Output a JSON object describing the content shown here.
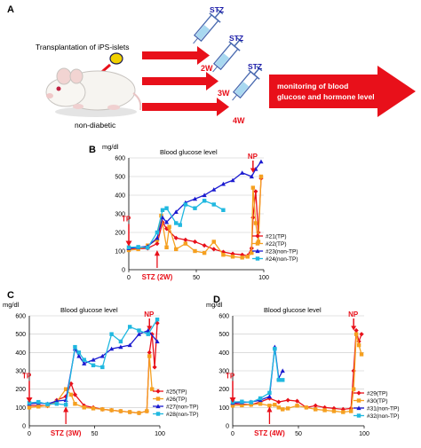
{
  "panel_a": {
    "label": "A",
    "transplant_label": "Transplantation of iPS-islets",
    "mouse_label": "non-diabetic",
    "stz_labels": [
      "STZ",
      "STZ",
      "STZ"
    ],
    "week_labels": [
      "2W",
      "3W",
      "4W"
    ],
    "monitor_lines": [
      "monitoring of blood",
      "glucose and hormone level"
    ],
    "colors": {
      "arrow": "#e8101a",
      "text_red": "#e8101a",
      "stz_blue": "#1a1aa8",
      "week_red": "#e8101a",
      "islet": "#f0d000"
    }
  },
  "chart_data": [
    {
      "panel": "B",
      "type": "line",
      "title": "Blood glucose level",
      "ylabel": "mg/dl",
      "ylim": [
        0,
        600
      ],
      "xlim": [
        0,
        100
      ],
      "yticks": [
        0,
        100,
        200,
        300,
        400,
        500,
        600
      ],
      "xticks": [
        0,
        50,
        100
      ],
      "grid": true,
      "legend_position": "bottom-right",
      "annotations": {
        "tp": "TP",
        "np": "NP",
        "stz": "STZ (2W)"
      },
      "series": [
        {
          "name": "#21(TP)",
          "color": "#e8101a",
          "marker": "diamond",
          "x": [
            0,
            7,
            14,
            21,
            25,
            28,
            35,
            42,
            49,
            56,
            63,
            70,
            77,
            84,
            88,
            91,
            92,
            94,
            96,
            98
          ],
          "y": [
            110,
            112,
            115,
            140,
            255,
            220,
            170,
            160,
            150,
            130,
            110,
            95,
            85,
            80,
            75,
            115,
            280,
            420,
            200,
            490
          ]
        },
        {
          "name": "#22(TP)",
          "color": "#f5a020",
          "marker": "square",
          "x": [
            0,
            7,
            14,
            21,
            24,
            28,
            30,
            35,
            42,
            49,
            56,
            63,
            70,
            77,
            84,
            88,
            91,
            92,
            94,
            96,
            98
          ],
          "y": [
            105,
            110,
            130,
            160,
            290,
            120,
            230,
            110,
            140,
            100,
            90,
            150,
            80,
            70,
            65,
            70,
            90,
            440,
            250,
            150,
            500
          ]
        },
        {
          "name": "#23(non-TP)",
          "color": "#1a1ad0",
          "marker": "triangle",
          "x": [
            0,
            7,
            14,
            21,
            25,
            28,
            35,
            42,
            49,
            56,
            63,
            70,
            77,
            84,
            91,
            94,
            98
          ],
          "y": [
            115,
            120,
            125,
            170,
            280,
            255,
            310,
            360,
            380,
            400,
            430,
            460,
            480,
            520,
            500,
            540,
            580
          ]
        },
        {
          "name": "#24(non-TP)",
          "color": "#20b8e0",
          "marker": "square",
          "x": [
            0,
            7,
            14,
            21,
            25,
            28,
            35,
            38,
            42,
            49,
            56,
            63,
            70
          ],
          "y": [
            120,
            122,
            118,
            200,
            320,
            330,
            250,
            240,
            350,
            330,
            370,
            350,
            320
          ]
        }
      ]
    },
    {
      "panel": "C",
      "type": "line",
      "title": "Blood glucose level",
      "ylabel": "mg/dl",
      "ylim": [
        0,
        600
      ],
      "xlim": [
        0,
        100
      ],
      "yticks": [
        0,
        100,
        200,
        300,
        400,
        500,
        600
      ],
      "xticks": [
        0,
        50,
        100
      ],
      "grid": true,
      "legend_position": "bottom-right",
      "annotations": {
        "tp": "TP",
        "np": "NP",
        "stz": "STZ (3W)"
      },
      "series": [
        {
          "name": "#25(TP)",
          "color": "#e8101a",
          "marker": "diamond",
          "x": [
            0,
            7,
            14,
            21,
            28,
            32,
            35,
            42,
            49,
            56,
            63,
            70,
            77,
            84,
            90,
            92,
            94,
            96,
            98
          ],
          "y": [
            110,
            112,
            108,
            140,
            160,
            230,
            170,
            110,
            100,
            90,
            85,
            80,
            75,
            70,
            80,
            400,
            500,
            320,
            560
          ]
        },
        {
          "name": "#26(TP)",
          "color": "#f5a020",
          "marker": "square",
          "x": [
            0,
            7,
            14,
            21,
            28,
            32,
            35,
            42,
            49,
            56,
            63,
            70,
            77,
            84,
            90,
            92,
            94
          ],
          "y": [
            100,
            105,
            110,
            130,
            200,
            170,
            120,
            100,
            95,
            90,
            85,
            80,
            75,
            70,
            80,
            380,
            200
          ]
        },
        {
          "name": "#27(non-TP)",
          "color": "#1a1ad0",
          "marker": "triangle",
          "x": [
            0,
            7,
            14,
            21,
            28,
            35,
            38,
            42,
            49,
            56,
            63,
            70,
            77,
            84,
            91,
            98
          ],
          "y": [
            120,
            125,
            120,
            135,
            140,
            420,
            380,
            340,
            360,
            380,
            420,
            430,
            440,
            500,
            520,
            460
          ]
        },
        {
          "name": "#28(non-TP)",
          "color": "#20b8e0",
          "marker": "square",
          "x": [
            0,
            7,
            14,
            21,
            28,
            35,
            38,
            42,
            49,
            56,
            63,
            70,
            77,
            84,
            91,
            98
          ],
          "y": [
            125,
            130,
            118,
            120,
            115,
            430,
            400,
            360,
            330,
            320,
            500,
            460,
            540,
            520,
            500,
            580
          ]
        }
      ]
    },
    {
      "panel": "D",
      "type": "line",
      "title": "Blood glucose level",
      "ylabel": "mg/dl",
      "ylim": [
        0,
        600
      ],
      "xlim": [
        0,
        100
      ],
      "yticks": [
        0,
        100,
        200,
        300,
        400,
        500,
        600
      ],
      "xticks": [
        0,
        50,
        100
      ],
      "grid": true,
      "legend_position": "bottom-right",
      "annotations": {
        "tp": "TP",
        "np": "NP",
        "stz": "STZ (4W)"
      },
      "series": [
        {
          "name": "#29(TP)",
          "color": "#e8101a",
          "marker": "diamond",
          "x": [
            0,
            7,
            14,
            21,
            28,
            35,
            42,
            49,
            56,
            63,
            70,
            77,
            84,
            90,
            92,
            94,
            96,
            98
          ],
          "y": [
            120,
            118,
            115,
            130,
            150,
            130,
            140,
            135,
            100,
            110,
            100,
            95,
            90,
            95,
            300,
            520,
            460,
            500
          ]
        },
        {
          "name": "#30(TP)",
          "color": "#f5a020",
          "marker": "square",
          "x": [
            0,
            7,
            14,
            21,
            28,
            32,
            35,
            38,
            42,
            49,
            56,
            63,
            70,
            77,
            84,
            90,
            92,
            94,
            96,
            98
          ],
          "y": [
            110,
            112,
            115,
            120,
            110,
            115,
            100,
            90,
            95,
            110,
            100,
            90,
            85,
            80,
            75,
            80,
            200,
            500,
            440,
            390
          ]
        },
        {
          "name": "#31(non-TP)",
          "color": "#1a1ad0",
          "marker": "triangle",
          "x": [
            0,
            7,
            14,
            21,
            28,
            32,
            35,
            38
          ],
          "y": [
            125,
            128,
            130,
            140,
            160,
            430,
            260,
            300
          ]
        },
        {
          "name": "#32(non-TP)",
          "color": "#20b8e0",
          "marker": "square",
          "x": [
            0,
            7,
            14,
            21,
            28,
            32,
            35,
            38
          ],
          "y": [
            130,
            132,
            128,
            150,
            180,
            420,
            250,
            250
          ]
        }
      ]
    }
  ]
}
